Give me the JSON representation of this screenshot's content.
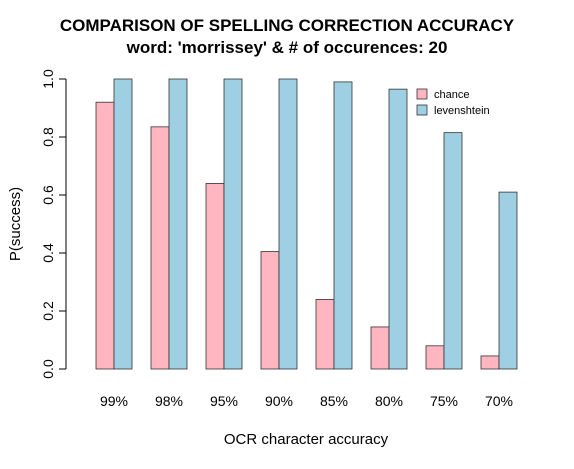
{
  "chart_data": {
    "type": "bar",
    "title": "COMPARISON OF SPELLING CORRECTION ACCURACY",
    "subtitle": "word: 'morrissey' & # of occurences: 20",
    "xlabel": "OCR character accuracy",
    "ylabel": "P(success)",
    "categories": [
      "99%",
      "98%",
      "95%",
      "90%",
      "85%",
      "80%",
      "75%",
      "70%"
    ],
    "series": [
      {
        "name": "chance",
        "color": "#ffb6c1",
        "values": [
          0.92,
          0.835,
          0.64,
          0.405,
          0.24,
          0.145,
          0.08,
          0.045
        ]
      },
      {
        "name": "levenshtein",
        "color": "#9ecfe2",
        "values": [
          1.0,
          1.0,
          1.0,
          1.0,
          0.99,
          0.965,
          0.815,
          0.61
        ]
      }
    ],
    "ylim": [
      0,
      1
    ],
    "yticks": [
      "0.0",
      "0.2",
      "0.4",
      "0.6",
      "0.8",
      "1.0"
    ],
    "legend_position": "top-right",
    "grid": false
  }
}
